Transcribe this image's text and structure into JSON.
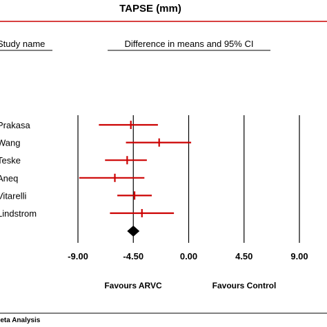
{
  "chart_data": {
    "type": "forest",
    "title": "TAPSE (mm)",
    "study_column_header": "Study name",
    "effect_column_header": "Difference in means and 95% CI",
    "xlim": [
      -9.0,
      9.0
    ],
    "x_ticks": [
      -9.0,
      -4.5,
      0.0,
      4.5,
      9.0
    ],
    "x_tick_labels": [
      "-9.00",
      "-4.50",
      "0.00",
      "4.50",
      "9.00"
    ],
    "left_label": "Favours ARVC",
    "right_label": "Favours Control",
    "studies": [
      {
        "name": "Prakasa",
        "mean": -4.7,
        "lower": -7.3,
        "upper": -2.5
      },
      {
        "name": "Wang",
        "mean": -2.4,
        "lower": -5.1,
        "upper": 0.2
      },
      {
        "name": "Teske",
        "mean": -5.0,
        "lower": -6.8,
        "upper": -3.4
      },
      {
        "name": "Aneq",
        "mean": -6.0,
        "lower": -8.9,
        "upper": -3.6
      },
      {
        "name": "Vitarelli",
        "mean": -4.4,
        "lower": -5.8,
        "upper": -3.0
      },
      {
        "name": "Lindstrom",
        "mean": -3.8,
        "lower": -6.4,
        "upper": -1.2
      }
    ],
    "pooled": {
      "mean": -4.5,
      "lower": -5.0,
      "upper": -4.0
    },
    "colors": {
      "study_markers": "#cc0000",
      "summary": "#000000",
      "header_rule": "#cc0000"
    }
  },
  "footer": {
    "text": "Meta Analysis"
  }
}
